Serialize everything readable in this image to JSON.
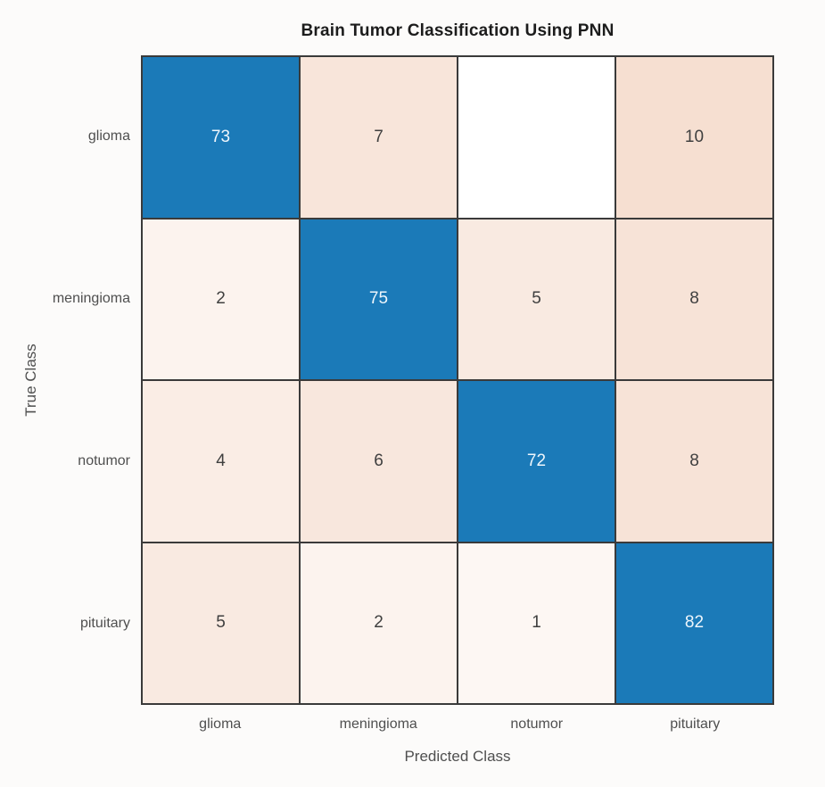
{
  "chart_data": {
    "type": "heatmap",
    "subtype": "confusion-matrix",
    "title": "Brain Tumor Classification Using PNN",
    "xlabel": "Predicted Class",
    "ylabel": "True Class",
    "classes": [
      "glioma",
      "meningioma",
      "notumor",
      "pituitary"
    ],
    "matrix": [
      [
        73,
        7,
        0,
        10
      ],
      [
        2,
        75,
        5,
        8
      ],
      [
        4,
        6,
        72,
        8
      ],
      [
        5,
        2,
        1,
        82
      ]
    ],
    "zero_cells_blank": true,
    "legend_position": "none",
    "colors": {
      "diagonal_fill": "#1b7ab8",
      "off_diagonal_max_fill": "#df8e5d",
      "zero_fill": "#ffffff",
      "grid_line": "#3a3a3a",
      "cell_text_dark": "#3f3f3f",
      "cell_text_light": "#eef6fc"
    }
  }
}
